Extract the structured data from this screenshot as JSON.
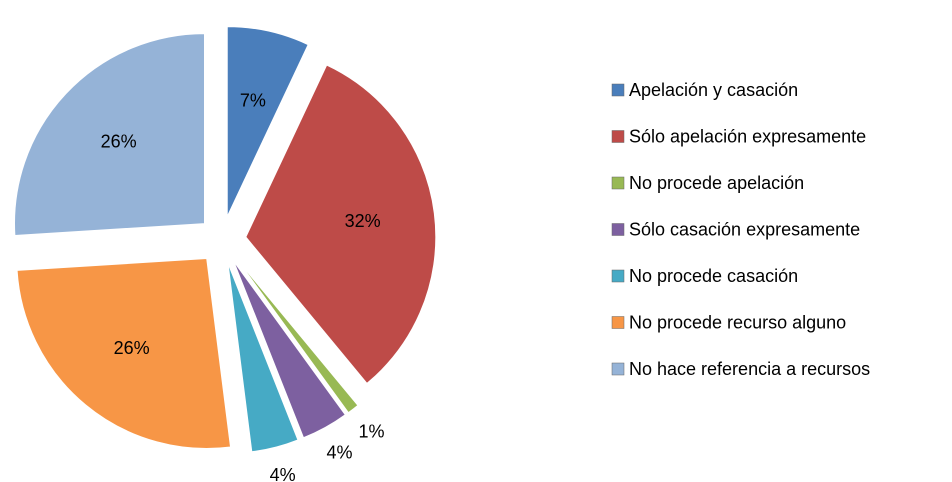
{
  "chart_data": {
    "type": "pie",
    "categories": [
      "Apelación y casación",
      "Sólo apelación expresamente",
      "No procede apelación",
      "Sólo casación expresamente",
      "No procede casación",
      "No procede recurso alguno",
      "No hace referencia a recursos"
    ],
    "values": [
      7,
      32,
      1,
      4,
      4,
      26,
      26
    ],
    "value_labels": [
      "7%",
      "32%",
      "1%",
      "4%",
      "4%",
      "26%",
      "26%"
    ],
    "colors": [
      "#4a7ebb",
      "#be4b48",
      "#98b954",
      "#7d60a0",
      "#46aac5",
      "#f79646",
      "#95b3d7"
    ],
    "legend": "right"
  }
}
